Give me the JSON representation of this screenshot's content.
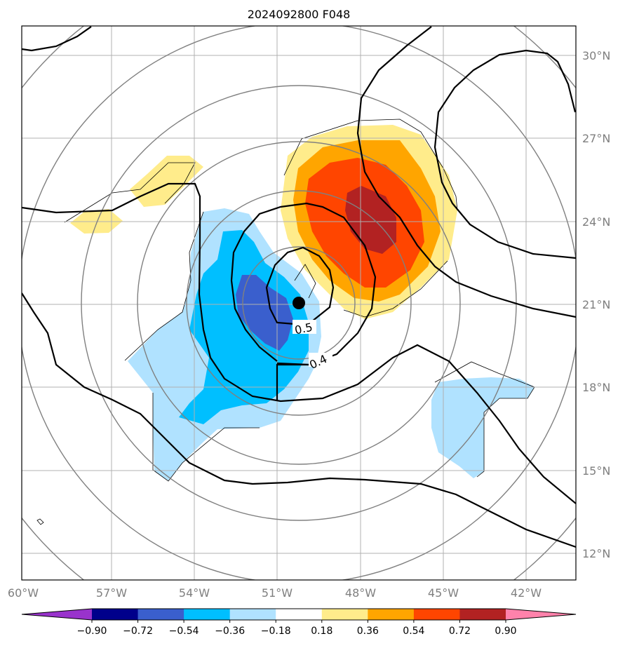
{
  "title": "2024092800 F048",
  "map": {
    "lon_ticks": [
      "60°W",
      "57°W",
      "54°W",
      "51°W",
      "48°W",
      "45°W",
      "42°W"
    ],
    "lat_ticks": [
      "30°N",
      "27°N",
      "24°N",
      "21°N",
      "18°N",
      "15°N",
      "12°N"
    ],
    "contour_labels": [
      "0.5",
      "0.4"
    ],
    "storm_center_marker": "black-dot"
  },
  "colorbar": {
    "ticks": [
      "−0.90",
      "−0.72",
      "−0.54",
      "−0.36",
      "−0.18",
      "0.18",
      "0.36",
      "0.54",
      "0.72",
      "0.90"
    ],
    "colors": [
      "#9933cc",
      "#00008b",
      "#3a5fcd",
      "#00bfff",
      "#b0e2ff",
      "#ffffff",
      "#ffec8b",
      "#ffa500",
      "#ff4500",
      "#b22222",
      "#ff82ab"
    ]
  }
}
